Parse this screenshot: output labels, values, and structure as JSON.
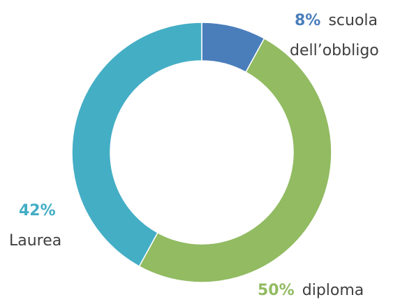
{
  "chart_data": {
    "type": "pie",
    "donut": true,
    "slices": [
      {
        "label": "scuola dell’obbligo",
        "value": 8,
        "value_label": "8%",
        "color": "#4a7ebb"
      },
      {
        "label": "diploma",
        "value": 50,
        "value_label": "50%",
        "color": "#92bb62"
      },
      {
        "label": "Laurea",
        "value": 42,
        "value_label": "42%",
        "color": "#44aec5"
      }
    ],
    "title": "",
    "legend": "none"
  }
}
